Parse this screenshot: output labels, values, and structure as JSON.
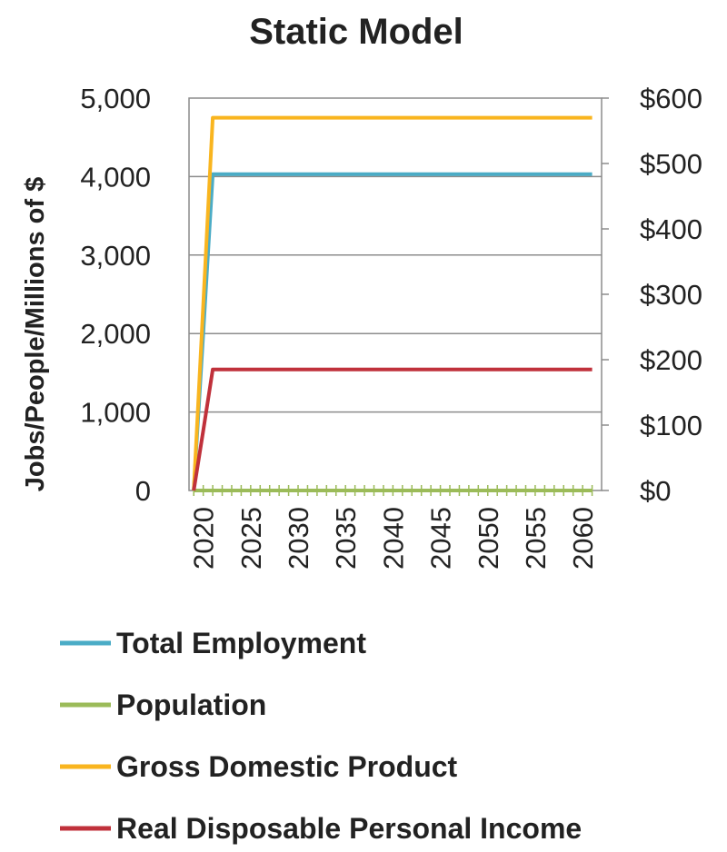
{
  "chart_data": {
    "type": "line",
    "title": "Static Model",
    "ylabel": "Jobs/People/Millions of $",
    "xlabel": "",
    "x": [
      2019,
      2020,
      2021,
      2022,
      2023,
      2024,
      2025,
      2026,
      2027,
      2028,
      2029,
      2030,
      2031,
      2032,
      2033,
      2034,
      2035,
      2036,
      2037,
      2038,
      2039,
      2040,
      2041,
      2042,
      2043,
      2044,
      2045,
      2046,
      2047,
      2048,
      2049,
      2050,
      2051,
      2052,
      2053,
      2054,
      2055,
      2056,
      2057,
      2058,
      2059,
      2060,
      2061
    ],
    "x_ticks": [
      "2020",
      "2025",
      "2030",
      "2035",
      "2040",
      "2045",
      "2050",
      "2055",
      "2060"
    ],
    "ylim": [
      0,
      5000
    ],
    "y_ticks": [
      "0",
      "1,000",
      "2,000",
      "3,000",
      "4,000",
      "5,000"
    ],
    "y2lim": [
      0,
      600
    ],
    "y2_ticks": [
      "$0",
      "$100",
      "$200",
      "$300",
      "$400",
      "$500",
      "$600"
    ],
    "grid": true,
    "legend_position": "bottom",
    "series": [
      {
        "name": "Total Employment",
        "color": "#4BACC6",
        "axis": "left",
        "values": [
          0,
          2010,
          4030,
          4030,
          4030,
          4030,
          4030,
          4030,
          4030,
          4030,
          4030,
          4030,
          4030,
          4030,
          4030,
          4030,
          4030,
          4030,
          4030,
          4030,
          4030,
          4030,
          4030,
          4030,
          4030,
          4030,
          4030,
          4030,
          4030,
          4030,
          4030,
          4030,
          4030,
          4030,
          4030,
          4030,
          4030,
          4030,
          4030,
          4030,
          4030,
          4030,
          4030
        ]
      },
      {
        "name": "Population",
        "color": "#9BBB59",
        "axis": "left",
        "values": [
          0,
          0,
          0,
          0,
          0,
          0,
          0,
          0,
          0,
          0,
          0,
          0,
          0,
          0,
          0,
          0,
          0,
          0,
          0,
          0,
          0,
          0,
          0,
          0,
          0,
          0,
          0,
          0,
          0,
          0,
          0,
          0,
          0,
          0,
          0,
          0,
          0,
          0,
          0,
          0,
          0,
          0,
          0
        ]
      },
      {
        "name": "Gross Domestic Product",
        "color": "#F9B51F",
        "axis": "right",
        "values": [
          0,
          285,
          570,
          570,
          570,
          570,
          570,
          570,
          570,
          570,
          570,
          570,
          570,
          570,
          570,
          570,
          570,
          570,
          570,
          570,
          570,
          570,
          570,
          570,
          570,
          570,
          570,
          570,
          570,
          570,
          570,
          570,
          570,
          570,
          570,
          570,
          570,
          570,
          570,
          570,
          570,
          570,
          570
        ]
      },
      {
        "name": "Real Disposable Personal Income",
        "color": "#C0313B",
        "axis": "right",
        "values": [
          0,
          92,
          185,
          185,
          185,
          185,
          185,
          185,
          185,
          185,
          185,
          185,
          185,
          185,
          185,
          185,
          185,
          185,
          185,
          185,
          185,
          185,
          185,
          185,
          185,
          185,
          185,
          185,
          185,
          185,
          185,
          185,
          185,
          185,
          185,
          185,
          185,
          185,
          185,
          185,
          185,
          185,
          185
        ]
      }
    ]
  }
}
